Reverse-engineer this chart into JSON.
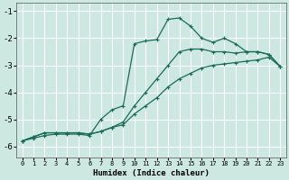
{
  "xlabel": "Humidex (Indice chaleur)",
  "bg_color": "#cce8e0",
  "grid_color": "#aad4cc",
  "line_color": "#1a6b5a",
  "xlim": [
    -0.5,
    23.5
  ],
  "ylim": [
    -6.4,
    -0.7
  ],
  "yticks": [
    -6,
    -5,
    -4,
    -3,
    -2,
    -1
  ],
  "xticks": [
    0,
    1,
    2,
    3,
    4,
    5,
    6,
    7,
    8,
    9,
    10,
    11,
    12,
    13,
    14,
    15,
    16,
    17,
    18,
    19,
    20,
    21,
    22,
    23
  ],
  "line1_y": [
    -5.8,
    -5.7,
    -5.6,
    -5.55,
    -5.55,
    -5.55,
    -5.6,
    -5.0,
    -4.65,
    -4.5,
    -2.2,
    -2.1,
    -2.05,
    -1.3,
    -1.25,
    -1.55,
    -2.0,
    -2.15,
    -2.0,
    -2.2,
    -2.5,
    -2.5,
    -2.6,
    -3.05
  ],
  "line2_y": [
    -5.8,
    -5.65,
    -5.5,
    -5.5,
    -5.5,
    -5.5,
    -5.55,
    -5.45,
    -5.3,
    -5.1,
    -4.5,
    -4.0,
    -3.5,
    -3.0,
    -2.5,
    -2.4,
    -2.4,
    -2.5,
    -2.5,
    -2.55,
    -2.5,
    -2.5,
    -2.6,
    -3.05
  ],
  "line3_y": [
    -5.8,
    -5.65,
    -5.5,
    -5.5,
    -5.5,
    -5.5,
    -5.55,
    -5.45,
    -5.3,
    -5.2,
    -4.8,
    -4.5,
    -4.2,
    -3.8,
    -3.5,
    -3.3,
    -3.1,
    -3.0,
    -2.95,
    -2.9,
    -2.85,
    -2.8,
    -2.7,
    -3.05
  ]
}
